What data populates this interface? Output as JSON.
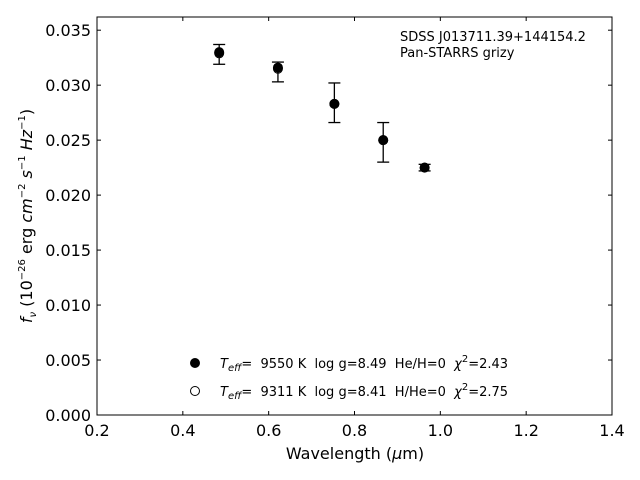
{
  "chart_data": {
    "type": "scatter",
    "xlabel_main": "Wavelength (",
    "xlabel_unit_symbol": "μ",
    "xlabel_unit_rest": "m)",
    "ylabel": {
      "f": "f",
      "f_sub": "ν",
      "open": " (10",
      "exp1": "−26",
      "erg": " erg ",
      "cm": "cm",
      "exp2": "−2",
      "s": " s",
      "exp3": "−1",
      "hz": " Hz",
      "exp4": "−1",
      "close": ")"
    },
    "xlim": [
      0.2,
      1.4
    ],
    "ylim": [
      0.0,
      0.0362
    ],
    "x_ticks": [
      "0.2",
      "0.4",
      "0.6",
      "0.8",
      "1.0",
      "1.2",
      "1.4"
    ],
    "x_tick_values": [
      0.2,
      0.4,
      0.6,
      0.8,
      1.0,
      1.2,
      1.4
    ],
    "y_ticks": [
      "0.000",
      "0.005",
      "0.010",
      "0.015",
      "0.020",
      "0.025",
      "0.030",
      "0.035"
    ],
    "y_tick_values": [
      0.0,
      0.005,
      0.01,
      0.015,
      0.02,
      0.025,
      0.03,
      0.035
    ],
    "annotation": [
      "SDSS J013711.39+144154.2",
      "Pan-STARRS grizy"
    ],
    "observed": {
      "x": [
        0.4847,
        0.6216,
        0.7531,
        0.8669,
        0.9634
      ],
      "y": [
        0.0328,
        0.0312,
        0.0284,
        0.0248,
        0.0225
      ],
      "err": [
        0.0009,
        0.0009,
        0.0018,
        0.0018,
        0.0003
      ]
    },
    "series": [
      {
        "marker": "filled",
        "teff_label": "T",
        "teff_sub": "eff",
        "text_main": "=  9550 K  log g=8.49  He/H=0  ",
        "chi": "χ",
        "chi_exp": "2",
        "chi_val": "=2.43",
        "x": [
          0.4847,
          0.6216,
          0.7531,
          0.8669,
          0.9634
        ],
        "y": [
          0.033,
          0.0316,
          0.0283,
          0.025,
          0.0225
        ]
      },
      {
        "marker": "open",
        "teff_label": "T",
        "teff_sub": "eff",
        "text_main": "=  9311 K  log g=8.41  H/He=0  ",
        "chi": "χ",
        "chi_exp": "2",
        "chi_val": "=2.75",
        "x": [
          0.4847,
          0.6216,
          0.7531,
          0.8669,
          0.9634
        ],
        "y": [
          0.0329,
          0.0315,
          0.0283,
          0.025,
          0.0225
        ]
      }
    ],
    "legend_placement": "lower-center",
    "grid": false
  }
}
